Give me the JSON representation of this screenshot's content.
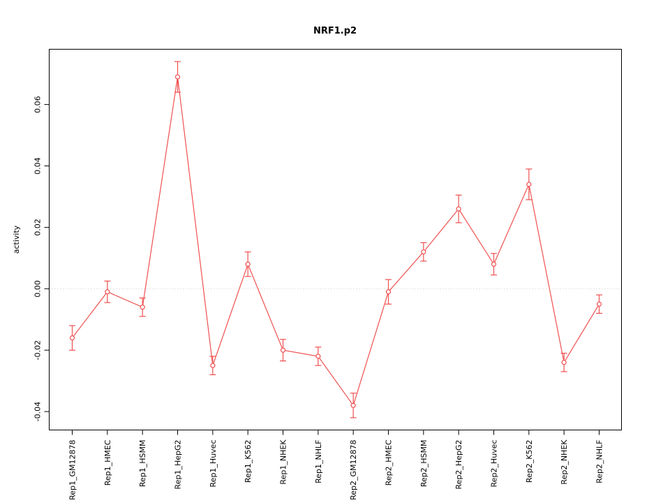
{
  "page": {
    "background": "#ffffff"
  },
  "chart_data": {
    "type": "line",
    "title": "NRF1.p2",
    "xlabel": "",
    "ylabel": "activity",
    "categories": [
      "Rep1_GM12878",
      "Rep1_HMEC",
      "Rep1_HSMM",
      "Rep1_HepG2",
      "Rep1_Huvec",
      "Rep1_K562",
      "Rep1_NHEK",
      "Rep1_NHLF",
      "Rep2_GM12878",
      "Rep2_HMEC",
      "Rep2_HSMM",
      "Rep2_HepG2",
      "Rep2_Huvec",
      "Rep2_K562",
      "Rep2_NHEK",
      "Rep2_NHLF"
    ],
    "series": [
      {
        "name": "NRF1.p2 activity",
        "values": [
          -0.016,
          -0.001,
          -0.006,
          0.069,
          -0.025,
          0.008,
          -0.02,
          -0.022,
          -0.038,
          -0.001,
          0.012,
          0.026,
          0.008,
          0.034,
          -0.024,
          -0.005
        ],
        "error": [
          0.004,
          0.0035,
          0.003,
          0.005,
          0.003,
          0.004,
          0.0035,
          0.003,
          0.004,
          0.004,
          0.003,
          0.0045,
          0.0035,
          0.005,
          0.003,
          0.003
        ]
      }
    ],
    "ylim": [
      -0.046,
      0.078
    ],
    "yticks": [
      -0.04,
      -0.02,
      0,
      0.02,
      0.04,
      0.06
    ],
    "ytick_labels": [
      "-0.04",
      "-0.02",
      "0.00",
      "0.02",
      "0.04",
      "0.06"
    ],
    "grid": {
      "zero_line": true,
      "style": "dotted"
    },
    "legend_position": "none",
    "marker": "open-circle",
    "colors": {
      "series": "#f05050",
      "zero_line": "#c8c8c8",
      "axis": "#000000"
    }
  }
}
